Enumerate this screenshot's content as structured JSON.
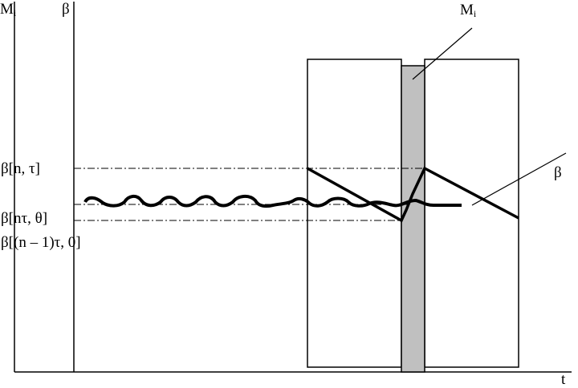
{
  "axes": {
    "left_axis_label": "M",
    "left_axis_sub": "i",
    "second_axis_label": "β",
    "x_axis_label": "t"
  },
  "levels": [
    {
      "label": "β[n, τ]"
    },
    {
      "label": "β[nτ, θ]"
    },
    {
      "label": "β[(n – 1)τ, 0]"
    }
  ],
  "annotations": {
    "interlayer_label": "M",
    "interlayer_sub": "i",
    "beta_label": "β"
  },
  "colors": {
    "interlayer_fill": "#c0c0c0",
    "line": "#000000"
  }
}
